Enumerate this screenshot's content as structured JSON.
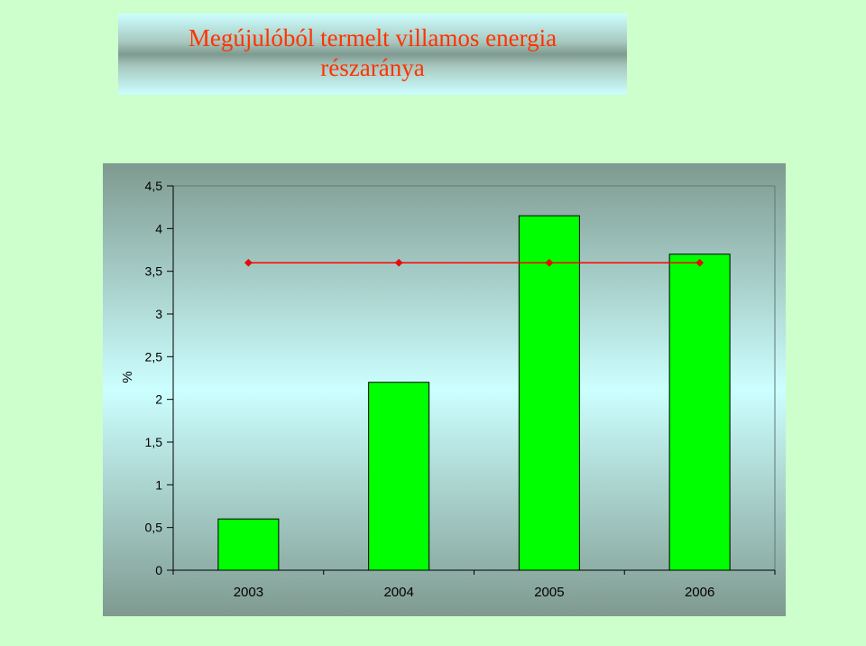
{
  "title": "Megújulóból termelt villamos energia részaránya",
  "chart_data": {
    "type": "bar",
    "title": "Megújulóból termelt villamos energia részaránya",
    "categories": [
      "2003",
      "2004",
      "2005",
      "2006"
    ],
    "series": [
      {
        "type": "bar",
        "values": [
          0.6,
          2.2,
          4.15,
          3.7
        ],
        "color": "#00ff00"
      },
      {
        "type": "line",
        "values": [
          3.6,
          3.6,
          3.6,
          3.6
        ],
        "color": "#ff0000"
      }
    ],
    "xlabel": "",
    "ylabel": "%",
    "ylim": [
      0,
      4.5
    ],
    "yticks": [
      "0",
      "0,5",
      "1",
      "1,5",
      "2",
      "2,5",
      "3",
      "3,5",
      "4",
      "4,5"
    ],
    "grid": false,
    "colors": {
      "bar": "#00ff00",
      "line": "#ff0000",
      "plot_bg_top": "#ccffff",
      "plot_bg_bottom": "#7f9a90",
      "page_bg": "#ccffcc"
    }
  }
}
